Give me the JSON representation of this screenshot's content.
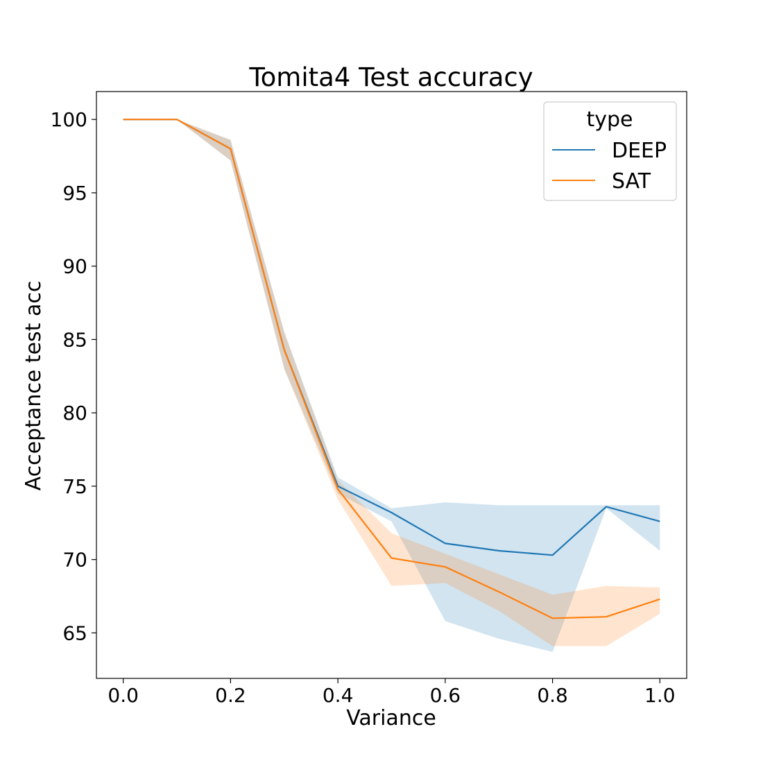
{
  "chart_data": {
    "type": "line",
    "title": "Tomita4 Test accuracy",
    "xlabel": "Variance",
    "ylabel": "Acceptance test acc",
    "xlim": [
      -0.05,
      1.05
    ],
    "ylim": [
      61.9,
      101.9
    ],
    "x": [
      0.0,
      0.1,
      0.2,
      0.3,
      0.4,
      0.5,
      0.6,
      0.7,
      0.8,
      0.9,
      1.0
    ],
    "xticks": [
      0.0,
      0.2,
      0.4,
      0.6,
      0.8,
      1.0
    ],
    "xtick_labels": [
      "0.0",
      "0.2",
      "0.4",
      "0.6",
      "0.8",
      "1.0"
    ],
    "yticks": [
      65,
      70,
      75,
      80,
      85,
      90,
      95,
      100
    ],
    "ytick_labels": [
      "65",
      "70",
      "75",
      "80",
      "85",
      "90",
      "95",
      "100"
    ],
    "grid": false,
    "legend": {
      "title": "type",
      "position": "top-right",
      "entries": [
        "DEEP",
        "SAT"
      ]
    },
    "series": [
      {
        "name": "DEEP",
        "color": "#1f77b4",
        "band_color": "#1f77b4",
        "values": [
          100,
          100,
          98.0,
          84.3,
          75.0,
          73.2,
          71.1,
          70.6,
          70.3,
          73.6,
          72.6
        ],
        "lower": [
          100,
          100,
          97.2,
          83.0,
          74.5,
          72.6,
          65.8,
          64.6,
          63.7,
          73.5,
          70.6
        ],
        "upper": [
          100,
          100,
          98.6,
          85.5,
          75.6,
          73.5,
          73.9,
          73.7,
          73.7,
          73.7,
          73.7
        ]
      },
      {
        "name": "SAT",
        "color": "#ff7f0e",
        "band_color": "#ff7f0e",
        "values": [
          100,
          100,
          98.0,
          84.3,
          74.8,
          70.1,
          69.5,
          67.8,
          66.0,
          66.1,
          67.3
        ],
        "lower": [
          100,
          100,
          97.2,
          83.0,
          74.1,
          68.2,
          68.4,
          66.5,
          64.1,
          64.1,
          66.3
        ],
        "upper": [
          100,
          100,
          98.6,
          85.5,
          75.4,
          71.8,
          70.4,
          69.0,
          67.6,
          68.2,
          68.1
        ]
      }
    ]
  }
}
